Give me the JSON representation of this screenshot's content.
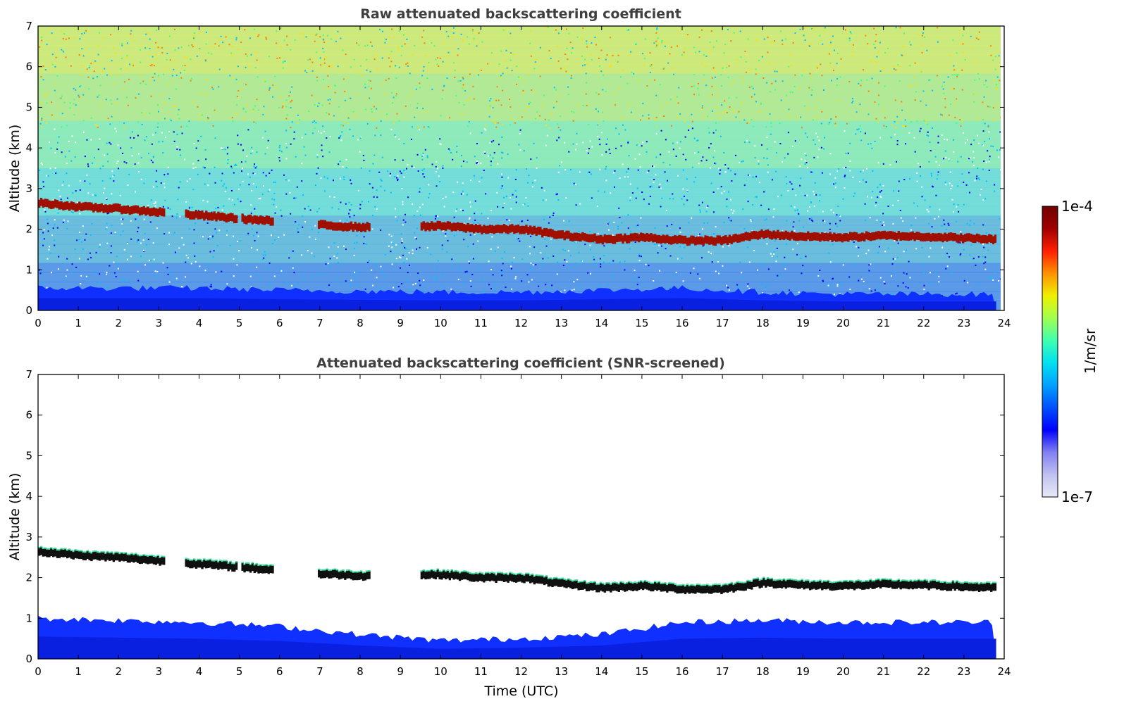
{
  "chart_data": [
    {
      "type": "heatmap",
      "title": "Raw attenuated backscattering coefficient",
      "xlabel": "",
      "ylabel": "Altitude (km)",
      "xlim": [
        0,
        24
      ],
      "ylim": [
        0,
        7
      ],
      "x_ticks": [
        "0",
        "1",
        "2",
        "3",
        "4",
        "5",
        "6",
        "7",
        "8",
        "9",
        "10",
        "11",
        "12",
        "13",
        "14",
        "15",
        "16",
        "17",
        "18",
        "19",
        "20",
        "21",
        "22",
        "23",
        "24"
      ],
      "y_ticks": [
        "0",
        "1",
        "2",
        "3",
        "4",
        "5",
        "6",
        "7"
      ],
      "colormap": "jet",
      "noise_background": true,
      "cloud_layer": [
        [
          0,
          2.65
        ],
        [
          1,
          2.55
        ],
        [
          2,
          2.5
        ],
        [
          7,
          2.1
        ],
        [
          8,
          2.05
        ],
        [
          10,
          2.08
        ],
        [
          11,
          2.0
        ],
        [
          12,
          2.0
        ],
        [
          13,
          1.85
        ],
        [
          14,
          1.75
        ],
        [
          15,
          1.8
        ],
        [
          16,
          1.72
        ],
        [
          17,
          1.72
        ],
        [
          18,
          1.88
        ],
        [
          19,
          1.82
        ],
        [
          20,
          1.8
        ],
        [
          21,
          1.84
        ],
        [
          22,
          1.82
        ],
        [
          23,
          1.78
        ],
        [
          23.8,
          1.75
        ]
      ],
      "boundary_layer_top": [
        [
          0,
          0.55
        ],
        [
          4,
          0.55
        ],
        [
          6,
          0.5
        ],
        [
          10,
          0.45
        ],
        [
          12,
          0.45
        ],
        [
          16,
          0.55
        ],
        [
          17,
          0.5
        ],
        [
          18,
          0.45
        ],
        [
          20,
          0.4
        ],
        [
          24,
          0.4
        ]
      ]
    },
    {
      "type": "heatmap",
      "title": "Attenuated backscattering coefficient (SNR-screened)",
      "xlabel": "Time (UTC)",
      "ylabel": "Altitude (km)",
      "xlim": [
        0,
        24
      ],
      "ylim": [
        0,
        7
      ],
      "x_ticks": [
        "0",
        "1",
        "2",
        "3",
        "4",
        "5",
        "6",
        "7",
        "8",
        "9",
        "10",
        "11",
        "12",
        "13",
        "14",
        "15",
        "16",
        "17",
        "18",
        "19",
        "20",
        "21",
        "22",
        "23",
        "24"
      ],
      "y_ticks": [
        "0",
        "1",
        "2",
        "3",
        "4",
        "5",
        "6",
        "7"
      ],
      "colormap": "jet",
      "noise_background": false,
      "cloud_layer": [
        [
          0,
          2.65
        ],
        [
          1,
          2.55
        ],
        [
          2,
          2.5
        ],
        [
          7,
          2.1
        ],
        [
          8,
          2.05
        ],
        [
          10,
          2.08
        ],
        [
          11,
          2.0
        ],
        [
          12,
          2.0
        ],
        [
          13,
          1.85
        ],
        [
          14,
          1.75
        ],
        [
          15,
          1.8
        ],
        [
          16,
          1.72
        ],
        [
          17,
          1.72
        ],
        [
          18,
          1.88
        ],
        [
          19,
          1.82
        ],
        [
          20,
          1.8
        ],
        [
          21,
          1.84
        ],
        [
          22,
          1.82
        ],
        [
          23,
          1.78
        ],
        [
          23.8,
          1.75
        ]
      ],
      "boundary_layer_top": [
        [
          0,
          1.0
        ],
        [
          2,
          0.95
        ],
        [
          4,
          0.9
        ],
        [
          6,
          0.8
        ],
        [
          8,
          0.6
        ],
        [
          10,
          0.45
        ],
        [
          12,
          0.5
        ],
        [
          14,
          0.6
        ],
        [
          16,
          0.9
        ],
        [
          18,
          0.95
        ],
        [
          20,
          0.9
        ],
        [
          24,
          0.9
        ]
      ]
    }
  ],
  "colorbar": {
    "max_label": "1e-4",
    "min_label": "1e-7",
    "unit_label": "1/m/sr",
    "colors": [
      "#e8e8f8",
      "#c0c0f0",
      "#8080f0",
      "#0000ff",
      "#0050ff",
      "#00a0ff",
      "#00e0f0",
      "#40ffb0",
      "#a0ff50",
      "#f0f000",
      "#ff9000",
      "#ff2000",
      "#a00000",
      "#700000"
    ]
  }
}
